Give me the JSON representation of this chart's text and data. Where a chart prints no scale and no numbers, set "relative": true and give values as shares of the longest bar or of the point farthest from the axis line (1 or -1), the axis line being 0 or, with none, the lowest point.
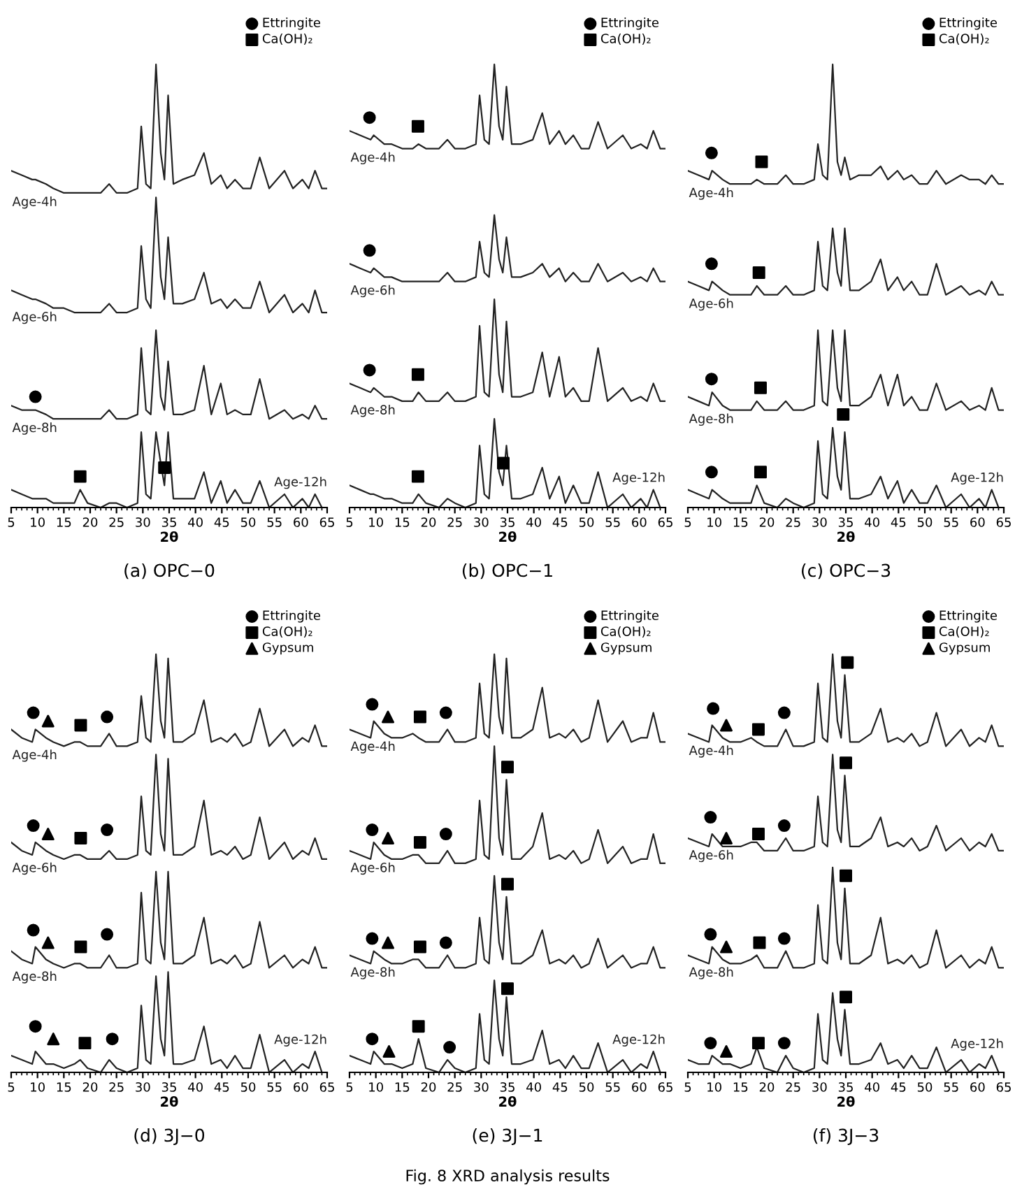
{
  "chart_data": [
    {
      "type": "line",
      "title": "(a) OPC−0",
      "xlabel": "2θ",
      "relative": true,
      "xlim": [
        5,
        65
      ],
      "xticks": [
        5,
        10,
        15,
        20,
        25,
        30,
        35,
        40,
        45,
        50,
        55,
        60,
        65
      ],
      "tick_labels": "x",
      "legend": "top right",
      "x": [
        5,
        7,
        9,
        9.6,
        11.6,
        13,
        15,
        17,
        18.1,
        19.5,
        22,
        23.6,
        25,
        27,
        29,
        29.7,
        30.6,
        31.5,
        32.5,
        33.4,
        34.1,
        34.8,
        35.8,
        37.5,
        39.8,
        41.6,
        43,
        44.8,
        46,
        47.5,
        49,
        50.5,
        52.2,
        54,
        56.9,
        58.5,
        60.3,
        61.5,
        62.7,
        64,
        65
      ],
      "series": [
        {
          "name": "Age-4h",
          "color": "#222222",
          "values": [
            0.76,
            0.75,
            0.74,
            0.74,
            0.73,
            0.72,
            0.71,
            0.71,
            0.71,
            0.71,
            0.71,
            0.73,
            0.71,
            0.71,
            0.72,
            0.86,
            0.73,
            0.72,
            1.0,
            0.8,
            0.74,
            0.93,
            0.73,
            0.74,
            0.75,
            0.8,
            0.73,
            0.75,
            0.72,
            0.74,
            0.72,
            0.72,
            0.79,
            0.72,
            0.76,
            0.72,
            0.74,
            0.72,
            0.76,
            0.72,
            0.72
          ]
        },
        {
          "name": "Age-6h",
          "color": "#222222",
          "values": [
            0.49,
            0.48,
            0.47,
            0.47,
            0.46,
            0.45,
            0.45,
            0.44,
            0.44,
            0.44,
            0.44,
            0.46,
            0.44,
            0.44,
            0.45,
            0.59,
            0.47,
            0.45,
            0.7,
            0.52,
            0.47,
            0.61,
            0.46,
            0.46,
            0.47,
            0.53,
            0.46,
            0.47,
            0.45,
            0.47,
            0.45,
            0.45,
            0.51,
            0.44,
            0.48,
            0.44,
            0.46,
            0.44,
            0.49,
            0.44,
            0.44
          ]
        },
        {
          "name": "Age-8h",
          "color": "#222222",
          "values": [
            0.23,
            0.22,
            0.22,
            0.22,
            0.21,
            0.2,
            0.2,
            0.2,
            0.2,
            0.2,
            0.2,
            0.22,
            0.2,
            0.2,
            0.21,
            0.36,
            0.22,
            0.21,
            0.4,
            0.25,
            0.22,
            0.33,
            0.21,
            0.21,
            0.22,
            0.32,
            0.21,
            0.28,
            0.21,
            0.22,
            0.21,
            0.21,
            0.29,
            0.2,
            0.22,
            0.2,
            0.21,
            0.2,
            0.23,
            0.2,
            0.2
          ]
        },
        {
          "name": "Age-12h",
          "color": "#222222",
          "values": [
            0.04,
            0.03,
            0.02,
            0.02,
            0.02,
            0.01,
            0.01,
            0.01,
            0.04,
            0.01,
            0.0,
            0.01,
            0.01,
            0.0,
            0.01,
            0.17,
            0.03,
            0.02,
            0.17,
            0.1,
            0.05,
            0.17,
            0.02,
            0.02,
            0.02,
            0.08,
            0.01,
            0.06,
            0.01,
            0.04,
            0.01,
            0.01,
            0.06,
            0.0,
            0.03,
            0.0,
            0.02,
            0.0,
            0.03,
            0.0,
            0.0
          ]
        },
        {
          "name": "Ettringite",
          "type": "scatter",
          "marker": "circle",
          "color": "#000000",
          "x": [
            9.6
          ],
          "values": [
            0.25
          ]
        },
        {
          "name": "Ca(OH)₂",
          "type": "scatter",
          "marker": "square",
          "color": "#000000",
          "x": [
            18.1,
            34.1
          ],
          "values": [
            0.07,
            0.09
          ]
        }
      ]
    },
    {
      "type": "line",
      "title": "(b) OPC−1",
      "xlabel": "2θ",
      "relative": true,
      "xlim": [
        5,
        65
      ],
      "xticks": [
        5,
        10,
        15,
        20,
        25,
        30,
        35,
        40,
        45,
        50,
        55,
        60,
        65
      ],
      "tick_labels": "x",
      "legend": "top right",
      "x": [
        5,
        7,
        9,
        9.6,
        11.6,
        13,
        15,
        17,
        18.1,
        19.5,
        22,
        23.6,
        25,
        27,
        29,
        29.7,
        30.6,
        31.5,
        32.5,
        33.4,
        34.1,
        34.8,
        35.8,
        37.5,
        39.8,
        41.6,
        43,
        44.8,
        46,
        47.5,
        49,
        50.5,
        52.2,
        54,
        56.9,
        58.5,
        60.3,
        61.5,
        62.7,
        64,
        65
      ],
      "series": [
        {
          "name": "Age-4h",
          "color": "#222222",
          "values": [
            0.85,
            0.84,
            0.83,
            0.84,
            0.82,
            0.82,
            0.81,
            0.81,
            0.82,
            0.81,
            0.81,
            0.83,
            0.81,
            0.81,
            0.82,
            0.93,
            0.83,
            0.82,
            1.0,
            0.86,
            0.83,
            0.95,
            0.82,
            0.82,
            0.83,
            0.89,
            0.82,
            0.85,
            0.82,
            0.84,
            0.81,
            0.81,
            0.87,
            0.81,
            0.84,
            0.81,
            0.82,
            0.81,
            0.85,
            0.81,
            0.81
          ]
        },
        {
          "name": "Age-6h",
          "color": "#222222",
          "values": [
            0.55,
            0.54,
            0.53,
            0.54,
            0.52,
            0.52,
            0.51,
            0.51,
            0.51,
            0.51,
            0.51,
            0.53,
            0.51,
            0.51,
            0.52,
            0.6,
            0.53,
            0.52,
            0.66,
            0.56,
            0.53,
            0.61,
            0.52,
            0.52,
            0.53,
            0.55,
            0.52,
            0.54,
            0.51,
            0.53,
            0.51,
            0.51,
            0.55,
            0.51,
            0.53,
            0.51,
            0.52,
            0.51,
            0.54,
            0.51,
            0.51
          ]
        },
        {
          "name": "Age-8h",
          "color": "#222222",
          "values": [
            0.28,
            0.27,
            0.26,
            0.27,
            0.25,
            0.25,
            0.24,
            0.24,
            0.26,
            0.24,
            0.24,
            0.26,
            0.24,
            0.24,
            0.25,
            0.41,
            0.26,
            0.25,
            0.47,
            0.3,
            0.26,
            0.42,
            0.25,
            0.25,
            0.26,
            0.35,
            0.25,
            0.34,
            0.25,
            0.27,
            0.24,
            0.24,
            0.36,
            0.24,
            0.27,
            0.24,
            0.25,
            0.24,
            0.28,
            0.24,
            0.24
          ]
        },
        {
          "name": "Age-12h",
          "color": "#222222",
          "values": [
            0.05,
            0.04,
            0.03,
            0.03,
            0.02,
            0.02,
            0.01,
            0.01,
            0.03,
            0.01,
            0.0,
            0.02,
            0.01,
            0.0,
            0.01,
            0.14,
            0.03,
            0.02,
            0.2,
            0.08,
            0.05,
            0.14,
            0.02,
            0.02,
            0.03,
            0.09,
            0.02,
            0.07,
            0.01,
            0.05,
            0.01,
            0.01,
            0.08,
            0.0,
            0.03,
            0.0,
            0.02,
            0.0,
            0.04,
            0.0,
            0.0
          ]
        },
        {
          "name": "Ettringite",
          "type": "scatter",
          "marker": "circle",
          "color": "#000000",
          "x": [
            8.8,
            8.8,
            8.8
          ],
          "values": [
            0.88,
            0.58,
            0.31
          ]
        },
        {
          "name": "Ca(OH)₂",
          "type": "scatter",
          "marker": "square",
          "color": "#000000",
          "x": [
            18.0,
            18.0,
            18.0,
            34.2
          ],
          "values": [
            0.86,
            0.3,
            0.07,
            0.1
          ]
        }
      ]
    },
    {
      "type": "line",
      "title": "(c) OPC−3",
      "xlabel": "2θ",
      "relative": true,
      "xlim": [
        5,
        65
      ],
      "xticks": [
        5,
        10,
        15,
        20,
        25,
        30,
        35,
        40,
        45,
        50,
        55,
        60,
        65
      ],
      "tick_labels": "x",
      "legend": "top right",
      "x": [
        5,
        7,
        9,
        9.6,
        11.6,
        13,
        15,
        17,
        18.1,
        19.5,
        22,
        23.6,
        25,
        27,
        29,
        29.7,
        30.6,
        31.5,
        32.5,
        33.4,
        34.1,
        34.8,
        35.8,
        37.5,
        39.8,
        41.6,
        43,
        44.8,
        46,
        47.5,
        49,
        50.5,
        52.2,
        54,
        56.9,
        58.5,
        60.3,
        61.5,
        62.7,
        64,
        65
      ],
      "series": [
        {
          "name": "Age-4h",
          "color": "#222222",
          "values": [
            0.76,
            0.75,
            0.74,
            0.76,
            0.74,
            0.73,
            0.73,
            0.73,
            0.74,
            0.73,
            0.73,
            0.75,
            0.73,
            0.73,
            0.74,
            0.82,
            0.75,
            0.74,
            1.0,
            0.78,
            0.75,
            0.79,
            0.74,
            0.75,
            0.75,
            0.77,
            0.74,
            0.76,
            0.74,
            0.75,
            0.73,
            0.73,
            0.76,
            0.73,
            0.75,
            0.74,
            0.74,
            0.73,
            0.75,
            0.73,
            0.73
          ]
        },
        {
          "name": "Age-6h",
          "color": "#222222",
          "values": [
            0.51,
            0.5,
            0.49,
            0.51,
            0.49,
            0.48,
            0.48,
            0.48,
            0.5,
            0.48,
            0.48,
            0.5,
            0.48,
            0.48,
            0.49,
            0.6,
            0.5,
            0.49,
            0.63,
            0.53,
            0.5,
            0.63,
            0.49,
            0.49,
            0.51,
            0.56,
            0.49,
            0.52,
            0.49,
            0.51,
            0.48,
            0.48,
            0.55,
            0.48,
            0.5,
            0.48,
            0.49,
            0.48,
            0.51,
            0.48,
            0.48
          ]
        },
        {
          "name": "Age-8h",
          "color": "#222222",
          "values": [
            0.25,
            0.24,
            0.23,
            0.26,
            0.23,
            0.22,
            0.22,
            0.22,
            0.24,
            0.22,
            0.22,
            0.24,
            0.22,
            0.22,
            0.23,
            0.4,
            0.24,
            0.23,
            0.4,
            0.27,
            0.24,
            0.4,
            0.23,
            0.23,
            0.25,
            0.3,
            0.23,
            0.3,
            0.23,
            0.25,
            0.22,
            0.22,
            0.28,
            0.22,
            0.24,
            0.22,
            0.23,
            0.22,
            0.27,
            0.22,
            0.22
          ]
        },
        {
          "name": "Age-12h",
          "color": "#222222",
          "values": [
            0.04,
            0.03,
            0.02,
            0.04,
            0.02,
            0.01,
            0.01,
            0.01,
            0.05,
            0.01,
            0.0,
            0.02,
            0.01,
            0.0,
            0.01,
            0.15,
            0.03,
            0.02,
            0.18,
            0.07,
            0.04,
            0.17,
            0.02,
            0.02,
            0.03,
            0.07,
            0.02,
            0.06,
            0.01,
            0.04,
            0.01,
            0.01,
            0.05,
            0.0,
            0.03,
            0.0,
            0.02,
            0.0,
            0.04,
            0.0,
            0.0
          ]
        },
        {
          "name": "Ettringite",
          "type": "scatter",
          "marker": "circle",
          "color": "#000000",
          "x": [
            9.5,
            9.5,
            9.5,
            9.5
          ],
          "values": [
            0.8,
            0.55,
            0.29,
            0.08
          ]
        },
        {
          "name": "Ca(OH)₂",
          "type": "scatter",
          "marker": "square",
          "color": "#000000",
          "x": [
            19.0,
            18.5,
            18.8,
            18.8,
            34.5
          ],
          "values": [
            0.78,
            0.53,
            0.27,
            0.08,
            0.21
          ]
        }
      ]
    },
    {
      "type": "line",
      "title": "(d) 3J−0",
      "xlabel": "2θ",
      "relative": true,
      "xlim": [
        5,
        65
      ],
      "xticks": [
        5,
        10,
        15,
        20,
        25,
        30,
        35,
        40,
        45,
        50,
        55,
        60,
        65
      ],
      "tick_labels": "x",
      "legend": "top right",
      "x": [
        5,
        7,
        9,
        9.6,
        11.6,
        13,
        15,
        17,
        18.1,
        19.5,
        22,
        23.6,
        25,
        27,
        29,
        29.7,
        30.6,
        31.5,
        32.5,
        33.4,
        34.1,
        34.8,
        35.8,
        37.5,
        39.8,
        41.6,
        43,
        44.8,
        46,
        47.5,
        49,
        50.5,
        52.2,
        54,
        56.9,
        58.5,
        60.3,
        61.5,
        62.7,
        64,
        65
      ],
      "series": [
        {
          "name": "Age-4h",
          "color": "#222222",
          "values": [
            0.82,
            0.8,
            0.79,
            0.82,
            0.8,
            0.79,
            0.78,
            0.79,
            0.79,
            0.78,
            0.78,
            0.81,
            0.78,
            0.78,
            0.79,
            0.9,
            0.8,
            0.79,
            1.0,
            0.84,
            0.8,
            0.99,
            0.79,
            0.79,
            0.81,
            0.89,
            0.79,
            0.8,
            0.79,
            0.81,
            0.78,
            0.79,
            0.87,
            0.78,
            0.82,
            0.78,
            0.8,
            0.79,
            0.83,
            0.78,
            0.78
          ]
        },
        {
          "name": "Age-6h",
          "color": "#222222",
          "values": [
            0.55,
            0.53,
            0.52,
            0.55,
            0.53,
            0.52,
            0.51,
            0.52,
            0.52,
            0.51,
            0.51,
            0.53,
            0.51,
            0.51,
            0.52,
            0.66,
            0.53,
            0.52,
            0.76,
            0.57,
            0.53,
            0.75,
            0.52,
            0.52,
            0.54,
            0.65,
            0.52,
            0.53,
            0.52,
            0.54,
            0.51,
            0.52,
            0.61,
            0.51,
            0.55,
            0.51,
            0.53,
            0.52,
            0.56,
            0.51,
            0.51
          ]
        },
        {
          "name": "Age-8h",
          "color": "#222222",
          "values": [
            0.29,
            0.27,
            0.26,
            0.3,
            0.27,
            0.26,
            0.25,
            0.26,
            0.26,
            0.25,
            0.25,
            0.28,
            0.25,
            0.25,
            0.26,
            0.43,
            0.27,
            0.26,
            0.48,
            0.31,
            0.27,
            0.48,
            0.26,
            0.26,
            0.28,
            0.37,
            0.26,
            0.27,
            0.26,
            0.28,
            0.25,
            0.26,
            0.36,
            0.25,
            0.28,
            0.25,
            0.27,
            0.26,
            0.3,
            0.25,
            0.25
          ]
        },
        {
          "name": "Age-12h",
          "color": "#222222",
          "values": [
            0.04,
            0.03,
            0.02,
            0.05,
            0.02,
            0.02,
            0.01,
            0.02,
            0.03,
            0.01,
            0.0,
            0.03,
            0.01,
            0.0,
            0.01,
            0.16,
            0.03,
            0.02,
            0.23,
            0.08,
            0.04,
            0.24,
            0.02,
            0.02,
            0.03,
            0.11,
            0.02,
            0.03,
            0.01,
            0.04,
            0.01,
            0.01,
            0.09,
            0.0,
            0.03,
            0.0,
            0.02,
            0.01,
            0.05,
            0.0,
            0.0
          ]
        },
        {
          "name": "Ettringite",
          "type": "scatter",
          "marker": "circle",
          "color": "#000000",
          "x": [
            9.2,
            23.2,
            9.2,
            23.2,
            9.2,
            23.2,
            9.6,
            24.2
          ],
          "values": [
            0.86,
            0.85,
            0.59,
            0.58,
            0.34,
            0.33,
            0.11,
            0.08
          ]
        },
        {
          "name": "Ca(OH)₂",
          "type": "scatter",
          "marker": "square",
          "color": "#000000",
          "x": [
            18.2,
            18.2,
            18.2,
            19.0
          ],
          "values": [
            0.83,
            0.56,
            0.3,
            0.07
          ]
        },
        {
          "name": "Gypsum",
          "type": "scatter",
          "marker": "triangle",
          "color": "#000000",
          "x": [
            12.0,
            12.0,
            12.0,
            13.0
          ],
          "values": [
            0.84,
            0.57,
            0.31,
            0.08
          ]
        }
      ]
    },
    {
      "type": "line",
      "title": "(e) 3J−1",
      "xlabel": "2θ",
      "relative": true,
      "xlim": [
        5,
        65
      ],
      "xticks": [
        5,
        10,
        15,
        20,
        25,
        30,
        35,
        40,
        45,
        50,
        55,
        60,
        65
      ],
      "tick_labels": "x",
      "legend": "top right",
      "annotations": [
        "Fig. 8 XRD analysis results"
      ],
      "x": [
        5,
        7,
        9,
        9.6,
        11.6,
        13,
        15,
        17,
        18.1,
        19.5,
        22,
        23.6,
        25,
        27,
        29,
        29.7,
        30.6,
        31.5,
        32.5,
        33.4,
        34.1,
        34.8,
        35.8,
        37.5,
        39.8,
        41.6,
        43,
        44.8,
        46,
        47.5,
        49,
        50.5,
        52.2,
        54,
        56.9,
        58.5,
        60.3,
        61.5,
        62.7,
        64,
        65
      ],
      "series": [
        {
          "name": "Age-4h",
          "color": "#222222",
          "values": [
            0.82,
            0.81,
            0.8,
            0.84,
            0.81,
            0.8,
            0.8,
            0.81,
            0.8,
            0.79,
            0.79,
            0.82,
            0.79,
            0.79,
            0.8,
            0.93,
            0.81,
            0.8,
            1.0,
            0.85,
            0.81,
            0.99,
            0.8,
            0.8,
            0.82,
            0.92,
            0.8,
            0.81,
            0.8,
            0.82,
            0.79,
            0.8,
            0.89,
            0.79,
            0.84,
            0.79,
            0.8,
            0.8,
            0.86,
            0.79,
            0.79
          ]
        },
        {
          "name": "Age-6h",
          "color": "#222222",
          "values": [
            0.53,
            0.52,
            0.51,
            0.55,
            0.52,
            0.51,
            0.51,
            0.52,
            0.52,
            0.5,
            0.5,
            0.53,
            0.5,
            0.5,
            0.51,
            0.65,
            0.52,
            0.51,
            0.78,
            0.56,
            0.52,
            0.7,
            0.51,
            0.51,
            0.54,
            0.62,
            0.51,
            0.52,
            0.51,
            0.53,
            0.5,
            0.51,
            0.58,
            0.5,
            0.54,
            0.5,
            0.51,
            0.51,
            0.57,
            0.5,
            0.5
          ]
        },
        {
          "name": "Age-8h",
          "color": "#222222",
          "values": [
            0.28,
            0.27,
            0.26,
            0.29,
            0.27,
            0.26,
            0.26,
            0.27,
            0.27,
            0.25,
            0.25,
            0.28,
            0.25,
            0.25,
            0.26,
            0.37,
            0.27,
            0.26,
            0.47,
            0.31,
            0.27,
            0.42,
            0.26,
            0.26,
            0.28,
            0.34,
            0.26,
            0.27,
            0.26,
            0.28,
            0.25,
            0.26,
            0.32,
            0.25,
            0.28,
            0.25,
            0.26,
            0.26,
            0.3,
            0.25,
            0.25
          ]
        },
        {
          "name": "Age-12h",
          "color": "#222222",
          "values": [
            0.04,
            0.03,
            0.02,
            0.05,
            0.02,
            0.02,
            0.01,
            0.02,
            0.08,
            0.01,
            0.0,
            0.03,
            0.01,
            0.0,
            0.01,
            0.14,
            0.03,
            0.02,
            0.22,
            0.08,
            0.04,
            0.18,
            0.02,
            0.02,
            0.03,
            0.1,
            0.02,
            0.03,
            0.01,
            0.04,
            0.01,
            0.01,
            0.07,
            0.0,
            0.03,
            0.0,
            0.02,
            0.01,
            0.05,
            0.0,
            0.0
          ]
        },
        {
          "name": "Ettringite",
          "type": "scatter",
          "marker": "circle",
          "color": "#000000",
          "x": [
            9.3,
            23.3,
            9.3,
            23.3,
            9.3,
            23.3,
            9.3,
            24.0
          ],
          "values": [
            0.88,
            0.86,
            0.58,
            0.57,
            0.32,
            0.31,
            0.08,
            0.06
          ]
        },
        {
          "name": "Ca(OH)₂",
          "type": "scatter",
          "marker": "square",
          "color": "#000000",
          "x": [
            18.4,
            18.4,
            35.0,
            18.4,
            35.0,
            18.1,
            35.0
          ],
          "values": [
            0.85,
            0.55,
            0.73,
            0.3,
            0.45,
            0.11,
            0.2
          ]
        },
        {
          "name": "Gypsum",
          "type": "scatter",
          "marker": "triangle",
          "color": "#000000",
          "x": [
            12.3,
            12.3,
            12.3,
            12.5
          ],
          "values": [
            0.85,
            0.56,
            0.31,
            0.05
          ]
        }
      ]
    },
    {
      "type": "line",
      "title": "(f) 3J−3",
      "xlabel": "2θ",
      "relative": true,
      "xlim": [
        5,
        65
      ],
      "xticks": [
        5,
        10,
        15,
        20,
        25,
        30,
        35,
        40,
        45,
        50,
        55,
        60,
        65
      ],
      "tick_labels": "x",
      "legend": "top right",
      "x": [
        5,
        7,
        9,
        9.6,
        11.6,
        13,
        15,
        17,
        18.1,
        19.5,
        22,
        23.6,
        25,
        27,
        29,
        29.7,
        30.6,
        31.5,
        32.5,
        33.4,
        34.1,
        34.8,
        35.8,
        37.5,
        39.8,
        41.6,
        43,
        44.8,
        46,
        47.5,
        49,
        50.5,
        52.2,
        54,
        56.9,
        58.5,
        60.3,
        61.5,
        62.7,
        64,
        65
      ],
      "series": [
        {
          "name": "Age-4h",
          "color": "#222222",
          "values": [
            0.81,
            0.8,
            0.79,
            0.83,
            0.8,
            0.79,
            0.79,
            0.8,
            0.79,
            0.78,
            0.78,
            0.82,
            0.78,
            0.78,
            0.79,
            0.93,
            0.8,
            0.79,
            1.0,
            0.84,
            0.8,
            0.95,
            0.79,
            0.79,
            0.81,
            0.87,
            0.79,
            0.8,
            0.79,
            0.81,
            0.78,
            0.79,
            0.86,
            0.78,
            0.82,
            0.78,
            0.8,
            0.79,
            0.83,
            0.78,
            0.78
          ]
        },
        {
          "name": "Age-6h",
          "color": "#222222",
          "values": [
            0.56,
            0.55,
            0.54,
            0.57,
            0.54,
            0.54,
            0.54,
            0.55,
            0.55,
            0.53,
            0.53,
            0.56,
            0.53,
            0.53,
            0.54,
            0.66,
            0.55,
            0.54,
            0.76,
            0.58,
            0.55,
            0.71,
            0.54,
            0.54,
            0.56,
            0.61,
            0.54,
            0.55,
            0.54,
            0.56,
            0.53,
            0.54,
            0.59,
            0.53,
            0.56,
            0.53,
            0.55,
            0.54,
            0.57,
            0.53,
            0.53
          ]
        },
        {
          "name": "Age-8h",
          "color": "#222222",
          "values": [
            0.28,
            0.27,
            0.26,
            0.3,
            0.27,
            0.26,
            0.26,
            0.27,
            0.28,
            0.25,
            0.25,
            0.29,
            0.25,
            0.25,
            0.26,
            0.4,
            0.27,
            0.26,
            0.49,
            0.31,
            0.27,
            0.44,
            0.26,
            0.26,
            0.28,
            0.37,
            0.26,
            0.27,
            0.26,
            0.28,
            0.25,
            0.26,
            0.34,
            0.25,
            0.28,
            0.25,
            0.27,
            0.26,
            0.3,
            0.25,
            0.25
          ]
        },
        {
          "name": "Age-12h",
          "color": "#222222",
          "values": [
            0.03,
            0.02,
            0.02,
            0.04,
            0.02,
            0.02,
            0.01,
            0.02,
            0.06,
            0.01,
            0.0,
            0.04,
            0.01,
            0.0,
            0.01,
            0.14,
            0.03,
            0.02,
            0.19,
            0.08,
            0.04,
            0.15,
            0.02,
            0.02,
            0.03,
            0.07,
            0.02,
            0.03,
            0.01,
            0.04,
            0.01,
            0.01,
            0.06,
            0.0,
            0.03,
            0.0,
            0.02,
            0.01,
            0.04,
            0.0,
            0.0
          ]
        },
        {
          "name": "Ettringite",
          "type": "scatter",
          "marker": "circle",
          "color": "#000000",
          "x": [
            9.8,
            23.3,
            9.3,
            23.3,
            9.3,
            23.3,
            9.3,
            23.3
          ],
          "values": [
            0.87,
            0.86,
            0.61,
            0.59,
            0.33,
            0.32,
            0.07,
            0.07
          ]
        },
        {
          "name": "Ca(OH)₂",
          "type": "scatter",
          "marker": "square",
          "color": "#000000",
          "x": [
            18.4,
            35.3,
            18.4,
            35.0,
            18.6,
            35.0,
            18.4,
            35.0
          ],
          "values": [
            0.82,
            0.98,
            0.57,
            0.74,
            0.31,
            0.47,
            0.07,
            0.18
          ]
        },
        {
          "name": "Gypsum",
          "type": "scatter",
          "marker": "triangle",
          "color": "#000000",
          "x": [
            12.3,
            12.3,
            12.3,
            12.3
          ],
          "values": [
            0.83,
            0.56,
            0.3,
            0.05
          ]
        }
      ]
    }
  ]
}
